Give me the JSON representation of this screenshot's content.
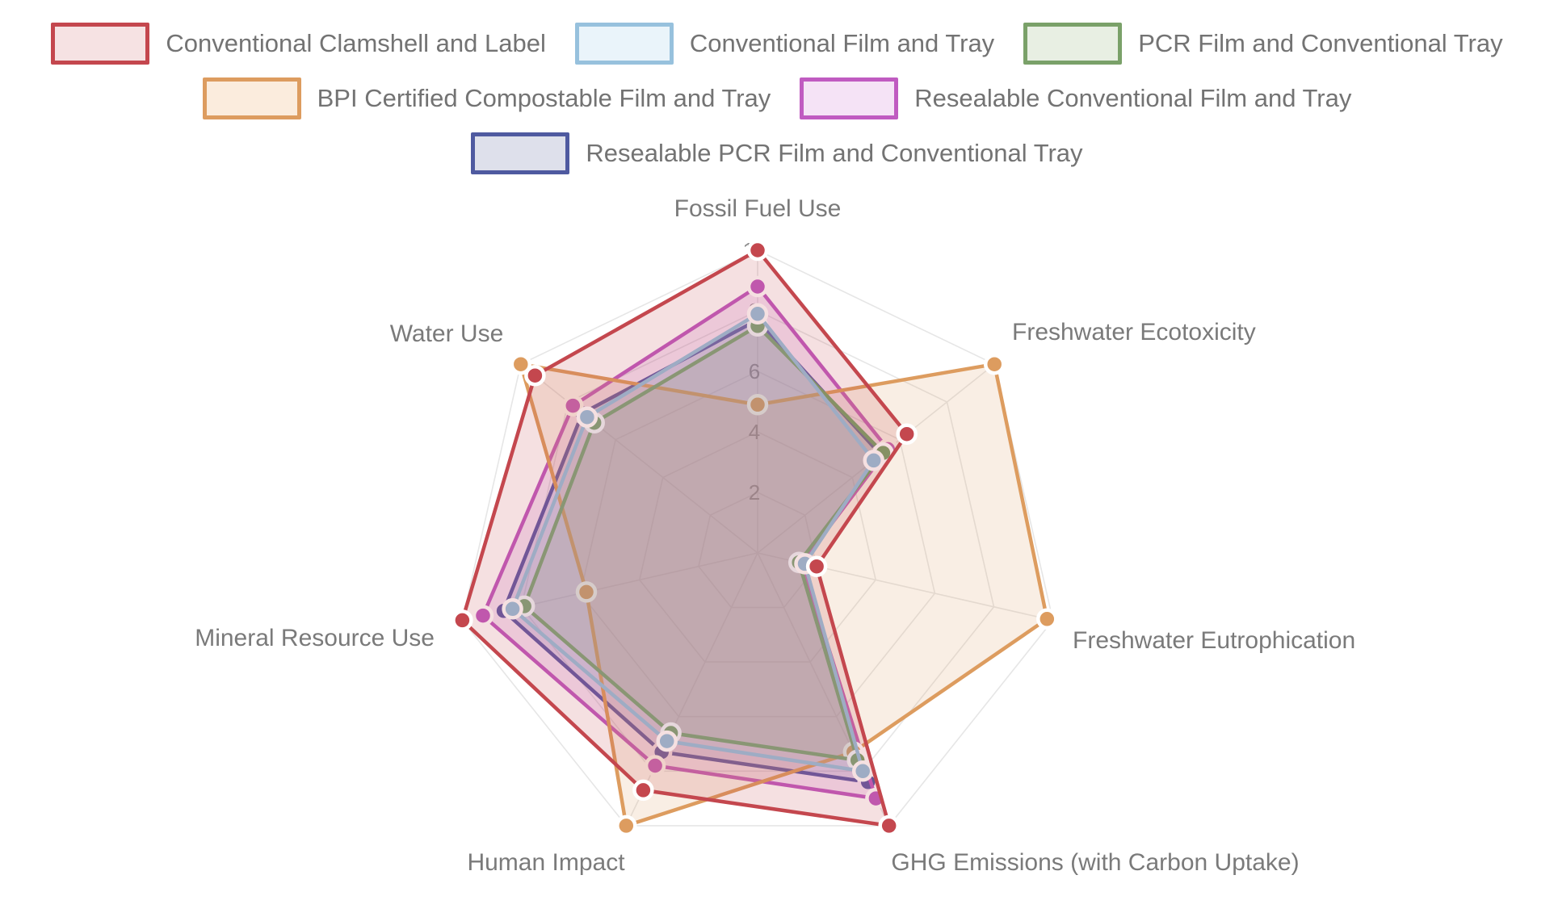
{
  "chart_data": {
    "type": "radar",
    "title": "",
    "categories": [
      "Fossil Fuel Use",
      "Freshwater Ecotoxicity",
      "Freshwater Eutrophication",
      "GHG Emissions (with Carbon Uptake)",
      "Human Impact",
      "Mineral Resource Use",
      "Water Use"
    ],
    "series": [
      {
        "name": "Conventional Clamshell and Label",
        "color": "#c4474e",
        "swatch_fill": "#f6e2e3",
        "values": [
          10,
          6.3,
          2.0,
          10,
          8.7,
          10,
          9.4
        ]
      },
      {
        "name": "Conventional Film and Tray",
        "color": "#97c1dd",
        "swatch_fill": "#eaf4fa",
        "values": [
          7.9,
          4.9,
          1.6,
          8.0,
          6.9,
          8.3,
          7.2
        ]
      },
      {
        "name": "PCR Film and Conventional Tray",
        "color": "#7aa169",
        "swatch_fill": "#e8efe3",
        "values": [
          7.5,
          5.3,
          1.4,
          7.6,
          6.6,
          7.9,
          6.9
        ]
      },
      {
        "name": "BPI Certified Compostable Film and Tray",
        "color": "#dd9c5f",
        "swatch_fill": "#fbecdd",
        "values": [
          4.9,
          10,
          9.8,
          7.3,
          10,
          5.8,
          10
        ]
      },
      {
        "name": "Resealable Conventional Film and Tray",
        "color": "#c05bc1",
        "swatch_fill": "#f5e3f6",
        "values": [
          8.8,
          5.5,
          1.5,
          9.0,
          7.8,
          9.3,
          7.8
        ]
      },
      {
        "name": "Resealable PCR Film and Conventional Tray",
        "color": "#4f5aa0",
        "swatch_fill": "#dee0eb",
        "values": [
          7.7,
          5.2,
          1.5,
          8.4,
          7.3,
          8.6,
          7.4
        ]
      }
    ],
    "radial_range": [
      0,
      10
    ],
    "radial_ticks": [
      "2",
      "4",
      "6",
      "8",
      "10"
    ],
    "grid": true,
    "legend_position": "top-center"
  },
  "colors": {
    "background": "#ffffff",
    "grid_line": "#e6e6e6",
    "axis_label": "#7a7a7a",
    "tick_label": "#8e8e8e",
    "legend_text": "#737373",
    "marker_ring": "#ffffff"
  }
}
